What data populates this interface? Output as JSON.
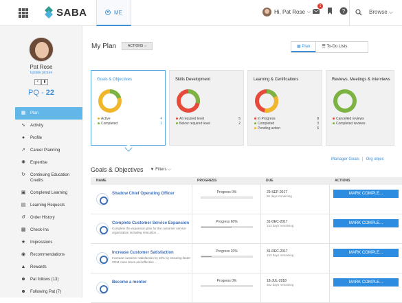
{
  "header": {
    "logo_text": "SABA",
    "me_tab": "ME",
    "user_greeting": "Hi, Pat Rose",
    "mail_badge": "1",
    "browse_label": "Browse",
    "accent_color": "#3d8fd6"
  },
  "profile": {
    "name": "Pat Rose",
    "update_link": "Update picture",
    "pq_label": "PQ - ",
    "pq_value": "22"
  },
  "sidebar": {
    "items": [
      {
        "label": "Plan",
        "icon": "plan-icon",
        "active": true
      },
      {
        "label": "Activity",
        "icon": "activity-icon"
      },
      {
        "label": "Profile",
        "icon": "person-icon"
      },
      {
        "label": "Career Planning",
        "icon": "career-icon"
      },
      {
        "label": "Expertise",
        "icon": "expertise-icon"
      },
      {
        "label": "Continuing Education Credits",
        "icon": "education-icon"
      },
      {
        "label": "Completed Learning",
        "icon": "learning-icon"
      },
      {
        "label": "Learning Requests",
        "icon": "requests-icon"
      },
      {
        "label": "Order History",
        "icon": "history-icon"
      },
      {
        "label": "Check-Ins",
        "icon": "checkin-icon"
      },
      {
        "label": "Impressions",
        "icon": "star-icon"
      },
      {
        "label": "Recommendations",
        "icon": "recommend-icon"
      },
      {
        "label": "Rewards",
        "icon": "trophy-icon"
      },
      {
        "label": "Pat follows (13)",
        "icon": "follows-icon"
      },
      {
        "label": "Following Pat (7)",
        "icon": "followers-icon"
      }
    ]
  },
  "main": {
    "title": "My Plan",
    "actions_label": "ACTIONS",
    "view_plan": "Plan",
    "view_todo": "To-Do Lists",
    "cards": [
      {
        "title": "Goals & Objectives",
        "legend": [
          {
            "label": "Active",
            "value": "4",
            "color": "#f0b62c"
          },
          {
            "label": "Completed",
            "value": "1",
            "color": "#7cb342"
          }
        ]
      },
      {
        "title": "Skills Development",
        "legend": [
          {
            "label": "At required level",
            "value": "5",
            "color": "#e64a3a"
          },
          {
            "label": "Below required level",
            "value": "2",
            "color": "#7cb342"
          }
        ]
      },
      {
        "title": "Learning & Certifications",
        "legend": [
          {
            "label": "In Progress",
            "value": "8",
            "color": "#e64a3a"
          },
          {
            "label": "Completed",
            "value": "3",
            "color": "#7cb342"
          },
          {
            "label": "Pending action",
            "value": "6",
            "color": "#f0b62c"
          }
        ]
      },
      {
        "title": "Reviews, Meetings & Interviews",
        "legend": [
          {
            "label": "Cancelled reviews",
            "value": "",
            "color": "#e64a3a"
          },
          {
            "label": "Completed reviews",
            "value": "",
            "color": "#7cb342"
          }
        ]
      }
    ],
    "links": {
      "manage": "Manager Goals",
      "org": "Org objec"
    },
    "goals_title": "Goals & Objectives",
    "filters_label": "Filters",
    "columns": {
      "name": "NAME",
      "progress": "PROGRESS",
      "due": "DUE",
      "actions": "ACTIONS"
    },
    "rows": [
      {
        "name": "Shadow Chief Operating Officer",
        "desc": "",
        "progress_label": "Progress 0%",
        "progress": 0,
        "due": "29-SEP-2017",
        "remaining": "60 days remaining",
        "action": "MARK COMPLE..."
      },
      {
        "name": "Complete Customer Service Expansion",
        "desc": "Complete the expansion plan for the customer service organization including relocation ...",
        "progress_label": "Progress 60%",
        "progress": 60,
        "due": "31-DEC-2017",
        "remaining": "153 days remaining",
        "action": "MARK COMPLE..."
      },
      {
        "name": "Increase Customer Satisfaction",
        "desc": "Increase customer satisfaction by 10% by ensuring faster CRM close times and effective ...",
        "progress_label": "Progress 20%",
        "progress": 20,
        "due": "31-DEC-2017",
        "remaining": "153 days remaining",
        "action": "MARK COMPLE..."
      },
      {
        "name": "Become a mentor",
        "desc": "",
        "progress_label": "Progress 0%",
        "progress": 0,
        "due": "18-JUL-2018",
        "remaining": "352 days remaining",
        "action": "MARK COMPLE..."
      }
    ]
  }
}
